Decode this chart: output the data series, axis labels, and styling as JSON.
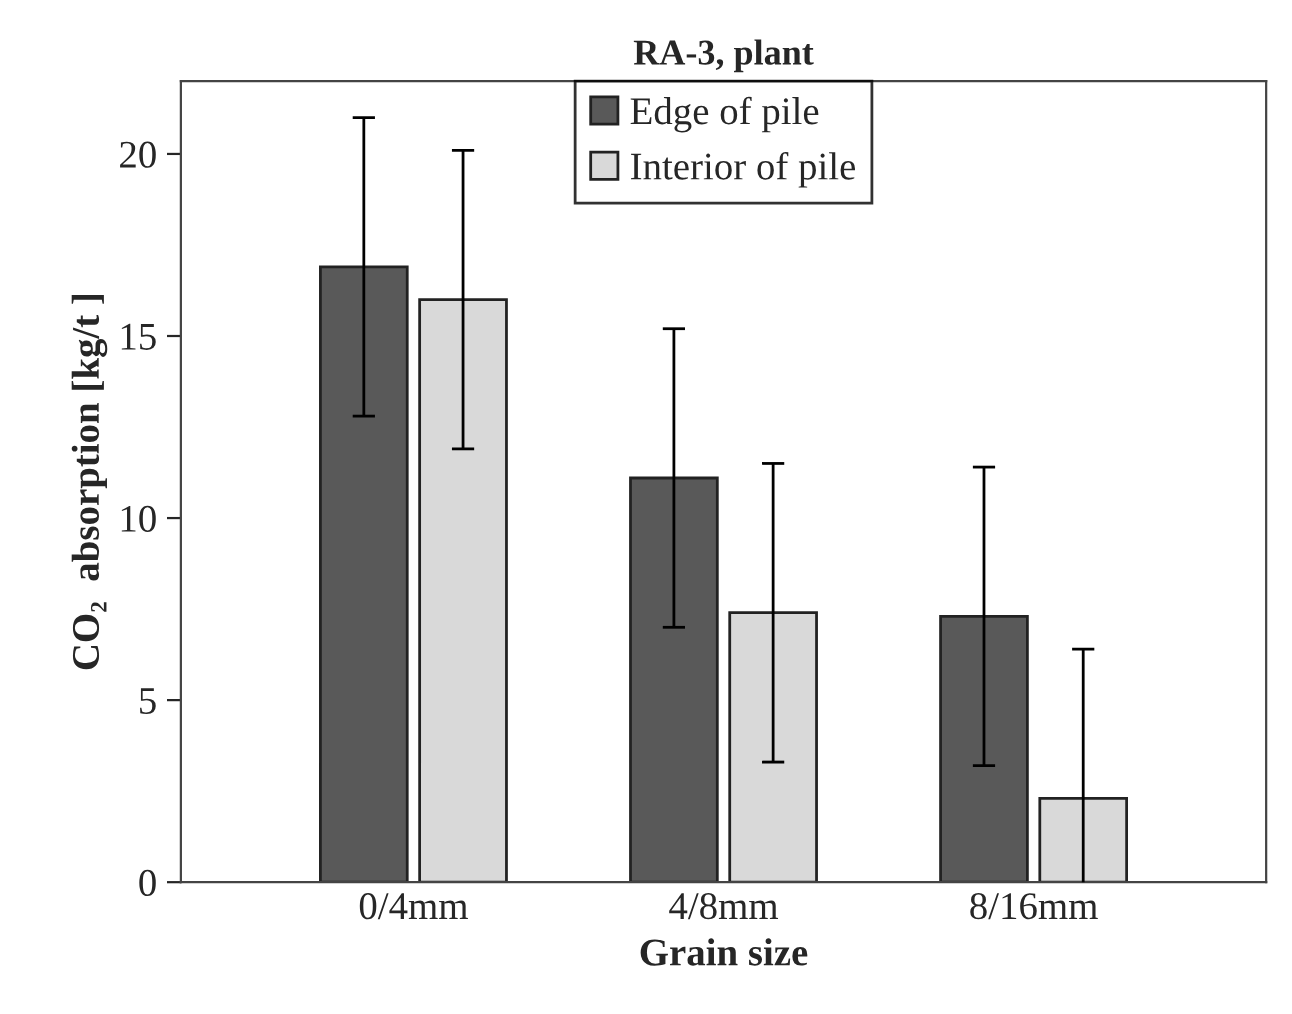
{
  "chart_data": {
    "type": "bar",
    "title": "RA-3, plant",
    "xlabel": "Grain size",
    "ylabel": "CO₂  absorption [kg/t ]",
    "categories": [
      "0/4mm",
      "4/8mm",
      "8/16mm"
    ],
    "series": [
      {
        "name": "Edge of pile",
        "color": "#595959",
        "values": [
          16.9,
          11.1,
          7.3
        ],
        "errors": [
          4.1,
          4.1,
          4.1
        ]
      },
      {
        "name": "Interior of pile",
        "color": "#d9d9d9",
        "values": [
          16.0,
          7.4,
          2.3
        ],
        "errors": [
          4.1,
          4.1,
          4.1
        ]
      }
    ],
    "ylim": [
      0,
      22
    ],
    "yticks": [
      0,
      5,
      10,
      15,
      20
    ],
    "grid": false,
    "legend": "top"
  }
}
